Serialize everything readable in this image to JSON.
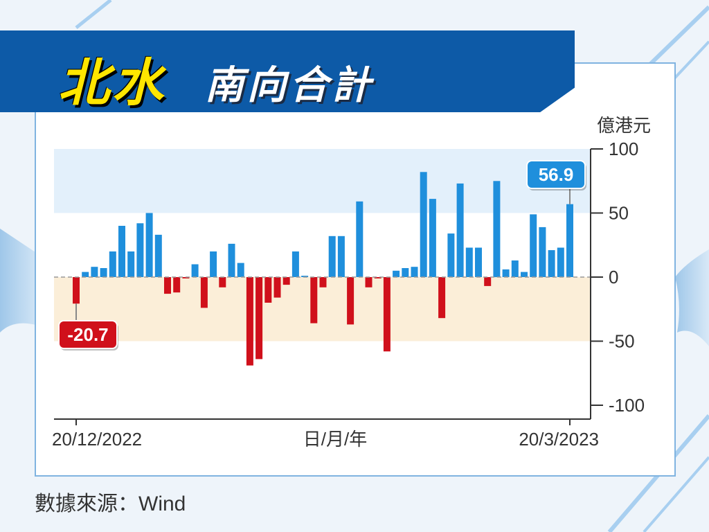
{
  "title": {
    "main": "北水",
    "sub": "南向合計"
  },
  "source": "數據來源：Wind",
  "colors": {
    "positive": "#1f8fdc",
    "negative": "#d0101b",
    "band_positive": "#e3f0fb",
    "band_negative": "#fbeed8",
    "title_bg": "#0d5aa7",
    "title_main": "#ffe600"
  },
  "chart_data": {
    "type": "bar",
    "unit_label": "億港元",
    "xlabel": "日/月/年",
    "x_start_label": "20/12/2022",
    "x_end_label": "20/3/2023",
    "ylim": [
      -100,
      100
    ],
    "yticks": [
      "100",
      "50",
      "0",
      "-50",
      "-100"
    ],
    "values": [
      -20.7,
      4,
      8,
      7,
      20,
      40,
      20,
      42,
      50,
      33,
      -13,
      -12,
      -1,
      10,
      -24,
      20,
      -8,
      26,
      11,
      -69,
      -64,
      -20,
      -16,
      -6,
      20,
      1,
      -36,
      -8,
      32,
      32,
      -37,
      59,
      -8,
      -1,
      -58,
      5,
      7,
      8,
      82,
      61,
      -32,
      34,
      73,
      23,
      23,
      -7,
      75,
      6,
      13,
      4,
      49,
      39,
      21,
      23,
      56.9
    ],
    "callouts": [
      {
        "label": "-20.7",
        "index": 0,
        "value": -20.7
      },
      {
        "label": "56.9",
        "index": 54,
        "value": 56.9
      }
    ]
  }
}
